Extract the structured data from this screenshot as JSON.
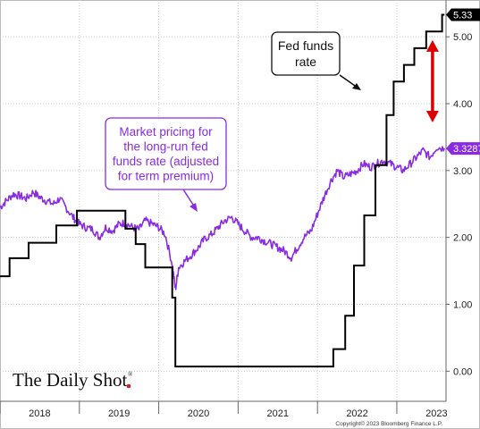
{
  "chart_data": {
    "type": "line",
    "title": "",
    "xlabel": "",
    "ylabel": "",
    "x_ticks": [
      "2018",
      "2019",
      "2020",
      "2021",
      "2022",
      "2023"
    ],
    "y_ticks": [
      "0.00",
      "1.00",
      "2.00",
      "3.00",
      "4.00",
      "5.00"
    ],
    "ylim": [
      -0.45,
      5.55
    ],
    "xlim": [
      2018.0,
      2023.62
    ],
    "y_axis_side": "right",
    "grid": true,
    "series": [
      {
        "name": "Fed funds rate",
        "color": "#000000",
        "last_value_label": "5.33",
        "x": [
          2018.0,
          2018.12,
          2018.12,
          2018.36,
          2018.36,
          2018.71,
          2018.71,
          2018.97,
          2018.97,
          2019.58,
          2019.58,
          2019.71,
          2019.71,
          2019.83,
          2019.83,
          2020.17,
          2020.17,
          2020.21,
          2020.21,
          2022.2,
          2022.2,
          2022.35,
          2022.35,
          2022.46,
          2022.46,
          2022.59,
          2022.59,
          2022.73,
          2022.73,
          2022.87,
          2022.87,
          2022.96,
          2022.96,
          2023.09,
          2023.09,
          2023.22,
          2023.22,
          2023.37,
          2023.37,
          2023.57,
          2023.57,
          2023.6
        ],
        "values": [
          1.42,
          1.42,
          1.69,
          1.69,
          1.92,
          1.92,
          2.18,
          2.18,
          2.4,
          2.4,
          2.13,
          2.13,
          1.9,
          1.9,
          1.55,
          1.55,
          1.1,
          1.1,
          0.07,
          0.07,
          0.33,
          0.33,
          0.83,
          0.83,
          1.58,
          1.58,
          2.33,
          2.33,
          3.08,
          3.08,
          3.83,
          3.83,
          4.33,
          4.33,
          4.58,
          4.58,
          4.83,
          4.83,
          5.08,
          5.08,
          5.33,
          5.33
        ]
      },
      {
        "name": "Market pricing for the long-run fed funds rate (adjusted for term premium)",
        "color": "#8a2be2",
        "last_value_label": "3.3287",
        "x": [
          2018.0,
          2018.08,
          2018.17,
          2018.25,
          2018.33,
          2018.42,
          2018.5,
          2018.58,
          2018.67,
          2018.75,
          2018.83,
          2018.92,
          2019.0,
          2019.08,
          2019.17,
          2019.25,
          2019.33,
          2019.42,
          2019.5,
          2019.58,
          2019.67,
          2019.75,
          2019.83,
          2019.92,
          2020.0,
          2020.08,
          2020.17,
          2020.21,
          2020.25,
          2020.33,
          2020.42,
          2020.5,
          2020.58,
          2020.67,
          2020.75,
          2020.83,
          2020.92,
          2021.0,
          2021.08,
          2021.17,
          2021.25,
          2021.33,
          2021.42,
          2021.5,
          2021.58,
          2021.67,
          2021.75,
          2021.83,
          2021.92,
          2022.0,
          2022.08,
          2022.17,
          2022.25,
          2022.33,
          2022.42,
          2022.5,
          2022.58,
          2022.67,
          2022.75,
          2022.83,
          2022.92,
          2023.0,
          2023.08,
          2023.17,
          2023.25,
          2023.33,
          2023.42,
          2023.5,
          2023.6
        ],
        "values": [
          2.45,
          2.55,
          2.65,
          2.62,
          2.58,
          2.68,
          2.6,
          2.55,
          2.5,
          2.58,
          2.45,
          2.3,
          2.2,
          2.15,
          2.12,
          2.0,
          2.15,
          2.1,
          2.2,
          2.22,
          2.15,
          2.12,
          2.25,
          2.2,
          2.15,
          2.05,
          1.6,
          1.22,
          1.55,
          1.65,
          1.75,
          1.85,
          1.98,
          2.05,
          2.15,
          2.25,
          2.3,
          2.2,
          2.1,
          2.0,
          2.0,
          1.95,
          1.9,
          1.85,
          1.8,
          1.7,
          1.85,
          2.0,
          2.1,
          2.35,
          2.6,
          2.85,
          3.0,
          2.9,
          2.95,
          3.0,
          3.1,
          3.05,
          3.1,
          3.15,
          3.1,
          3.05,
          3.0,
          3.1,
          3.2,
          3.3,
          3.2,
          3.35,
          3.33
        ]
      }
    ],
    "annotations": [
      {
        "text_lines": [
          "Fed funds",
          "rate"
        ],
        "color": "#000000",
        "target_series": "Fed funds rate"
      },
      {
        "text_lines": [
          "Market pricing for",
          "the long-run fed",
          "funds rate (adjusted",
          "for term premium)"
        ],
        "color": "#8a2be2"
      }
    ],
    "gap_arrow": {
      "x": 2023.45,
      "from": 3.72,
      "to": 4.95,
      "color": "#dd0000"
    },
    "logo": "The Daily Shot",
    "copyright": "Copyright© 2023 Bloomberg Finance L.P."
  }
}
